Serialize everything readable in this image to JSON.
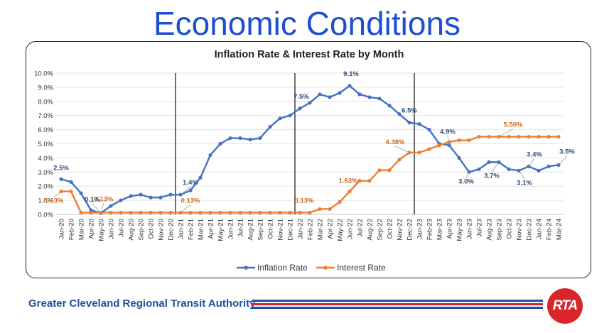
{
  "slide": {
    "title": "Economic Conditions",
    "footer_org": "Greater Cleveland Regional Transit Authority",
    "logo_text": "RTA"
  },
  "colors": {
    "title": "#1f4fd1",
    "inflation": "#4472c4",
    "interest": "#ed7d31",
    "footer_blue": "#1f4fa3",
    "footer_red": "#d9262b"
  },
  "chart_data": {
    "type": "line",
    "title": "Inflation Rate & Interest Rate by Month",
    "xlabel": "",
    "ylabel": "",
    "ylim": [
      0,
      10
    ],
    "y_ticks": [
      "0.0%",
      "1.0%",
      "2.0%",
      "3.0%",
      "4.0%",
      "5.0%",
      "6.0%",
      "7.0%",
      "8.0%",
      "9.0%",
      "10.0%"
    ],
    "grid": true,
    "legend_position": "bottom",
    "categories": [
      "Jan-20",
      "Feb-20",
      "Mar-20",
      "Apr-20",
      "May-20",
      "Jun-20",
      "Jul-20",
      "Aug-20",
      "Sep-20",
      "Oct-20",
      "Nov-20",
      "Dec-20",
      "Jan-21",
      "Feb-21",
      "Mar-21",
      "Apr-21",
      "May-21",
      "Jun-21",
      "Jul-21",
      "Aug-21",
      "Sep-21",
      "Oct-21",
      "Nov-21",
      "Dec-21",
      "Jan-22",
      "Feb-22",
      "Mar-22",
      "Apr-22",
      "May-22",
      "Jun-22",
      "Jul-22",
      "Aug-22",
      "Sep-22",
      "Oct-22",
      "Nov-22",
      "Dec-22",
      "Jan-23",
      "Feb-23",
      "Mar-23",
      "Apr-23",
      "May-23",
      "Jun-23",
      "Jul-23",
      "Aug-23",
      "Sep-23",
      "Oct-23",
      "Nov-23",
      "Dec-23",
      "Jan-24",
      "Feb-24",
      "Mar-24"
    ],
    "vertical_lines_at": [
      "Jan-21",
      "Jan-22",
      "Jan-23"
    ],
    "series": [
      {
        "name": "Inflation Rate",
        "values": [
          2.5,
          2.3,
          1.5,
          0.3,
          0.1,
          0.6,
          1.0,
          1.3,
          1.4,
          1.2,
          1.2,
          1.4,
          1.4,
          1.7,
          2.6,
          4.2,
          5.0,
          5.4,
          5.4,
          5.3,
          5.4,
          6.2,
          6.8,
          7.0,
          7.5,
          7.9,
          8.5,
          8.3,
          8.6,
          9.1,
          8.5,
          8.3,
          8.2,
          7.7,
          7.1,
          6.5,
          6.4,
          6.0,
          5.0,
          4.9,
          4.0,
          3.0,
          3.2,
          3.7,
          3.7,
          3.2,
          3.1,
          3.4,
          3.1,
          3.4,
          3.5
        ]
      },
      {
        "name": "Interest Rate",
        "values": [
          1.63,
          1.63,
          0.13,
          0.13,
          0.13,
          0.13,
          0.13,
          0.13,
          0.13,
          0.13,
          0.13,
          0.13,
          0.13,
          0.13,
          0.13,
          0.13,
          0.13,
          0.13,
          0.13,
          0.13,
          0.13,
          0.13,
          0.13,
          0.13,
          0.13,
          0.13,
          0.38,
          0.38,
          0.88,
          1.63,
          2.38,
          2.38,
          3.13,
          3.13,
          3.88,
          4.38,
          4.38,
          4.63,
          4.88,
          5.13,
          5.25,
          5.25,
          5.5,
          5.5,
          5.5,
          5.5,
          5.5,
          5.5,
          5.5,
          5.5,
          5.5
        ]
      }
    ],
    "annotations": [
      {
        "series": 0,
        "index": 0,
        "text": "2.5%"
      },
      {
        "series": 0,
        "index": 4,
        "text": "0.1%"
      },
      {
        "series": 0,
        "index": 12,
        "text": "1.4%"
      },
      {
        "series": 0,
        "index": 24,
        "text": "7.5%"
      },
      {
        "series": 0,
        "index": 29,
        "text": "9.1%"
      },
      {
        "series": 0,
        "index": 35,
        "text": "6.5%"
      },
      {
        "series": 0,
        "index": 39,
        "text": "4.9%"
      },
      {
        "series": 0,
        "index": 41,
        "text": "3.0%"
      },
      {
        "series": 0,
        "index": 44,
        "text": "3.7%"
      },
      {
        "series": 0,
        "index": 46,
        "text": "3.1%"
      },
      {
        "series": 0,
        "index": 47,
        "text": "3.4%"
      },
      {
        "series": 0,
        "index": 50,
        "text": "3.5%"
      },
      {
        "series": 1,
        "index": 0,
        "text": "1.63%"
      },
      {
        "series": 1,
        "index": 4,
        "text": "0.13%"
      },
      {
        "series": 1,
        "index": 12,
        "text": "0.13%"
      },
      {
        "series": 1,
        "index": 24,
        "text": "0.13%"
      },
      {
        "series": 1,
        "index": 29,
        "text": "1.63%"
      },
      {
        "series": 1,
        "index": 35,
        "text": "4.38%"
      },
      {
        "series": 1,
        "index": 44,
        "text": "5.50%"
      }
    ]
  }
}
